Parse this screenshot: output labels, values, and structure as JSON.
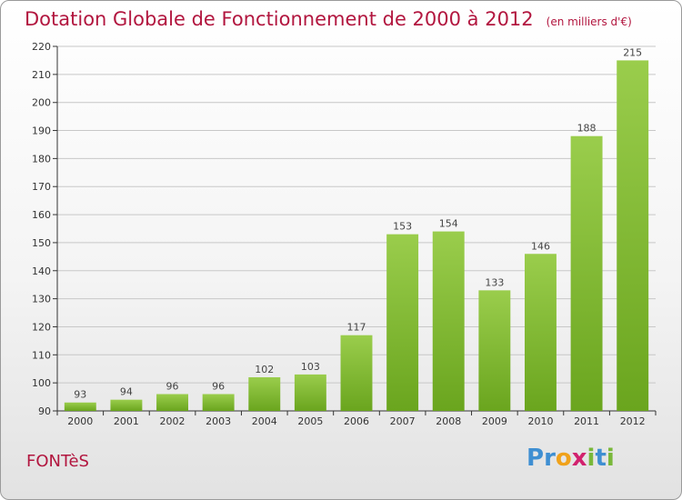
{
  "title": "Dotation Globale de Fonctionnement de 2000 à 2012",
  "subtitle": "(en milliers d'€)",
  "commune": "FONTèS",
  "logo": {
    "letters": [
      "P",
      "r",
      "o",
      "x",
      "i",
      "t",
      "i"
    ],
    "colors": [
      "#3f8fd2",
      "#3f8fd2",
      "#f0a21b",
      "#d2226e",
      "#79b83a",
      "#3f8fd2",
      "#79b83a"
    ]
  },
  "colors": {
    "bar_top": "#9acd4c",
    "bar_bottom": "#6aa51e",
    "title": "#b2163f",
    "grid": "#c8c8c8"
  },
  "chart_data": {
    "type": "bar",
    "title": "Dotation Globale de Fonctionnement de 2000 à 2012",
    "subtitle": "(en milliers d'€)",
    "categories": [
      "2000",
      "2001",
      "2002",
      "2003",
      "2004",
      "2005",
      "2006",
      "2007",
      "2008",
      "2009",
      "2010",
      "2011",
      "2012"
    ],
    "values": [
      93,
      94,
      96,
      96,
      102,
      103,
      117,
      153,
      154,
      133,
      146,
      188,
      215
    ],
    "ylim": [
      90,
      220
    ],
    "yticks": [
      90,
      100,
      110,
      120,
      130,
      140,
      150,
      160,
      170,
      180,
      190,
      200,
      210,
      220
    ],
    "grid": true,
    "xlabel": "",
    "ylabel": ""
  }
}
